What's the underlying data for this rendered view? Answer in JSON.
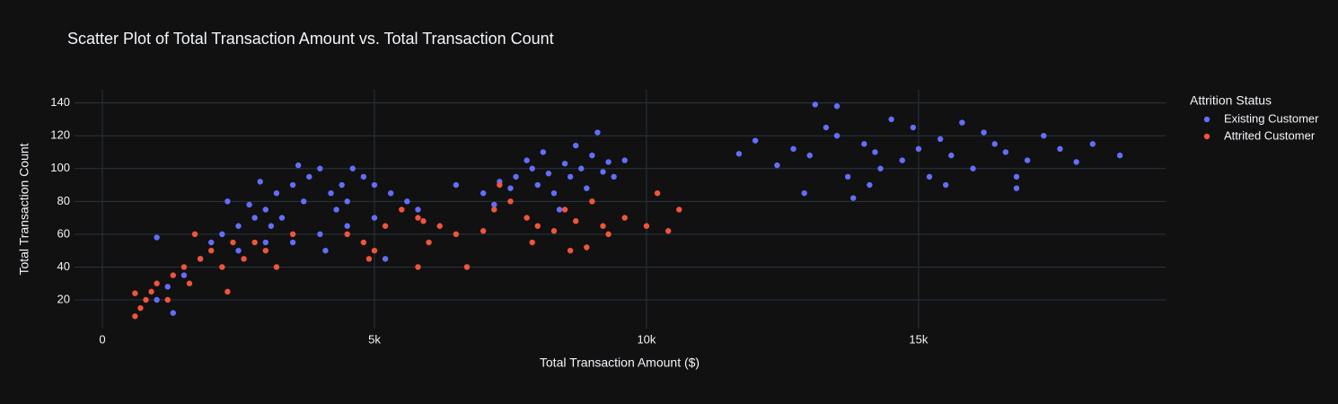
{
  "chart_data": {
    "type": "scatter",
    "title": "Scatter Plot of Total Transaction Amount vs. Total Transaction Count",
    "x_label": "Total Transaction Amount ($)",
    "y_label": "Total Transaction Count",
    "legend_title": "Attrition Status",
    "legend_position": "right",
    "grid": true,
    "xlim": [
      -512,
      19540
    ],
    "ylim": [
      2.5,
      148
    ],
    "xticks": [
      0,
      {
        "value": 5000,
        "label": "5k"
      },
      {
        "value": 10000,
        "label": "10k"
      },
      {
        "value": 15000,
        "label": "15k"
      }
    ],
    "yticks": [
      20,
      40,
      60,
      80,
      100,
      120,
      140
    ],
    "series": [
      {
        "name": "Existing Customer",
        "color": "#636efa",
        "x": [
          1000,
          1200,
          1500,
          1800,
          2000,
          2200,
          2500,
          2800,
          3000,
          3200,
          3500,
          3800,
          4000,
          4200,
          4500,
          4800,
          5000,
          5300,
          5600,
          5800,
          5000,
          4500,
          4000,
          3500,
          3000,
          2500,
          4300,
          3700,
          3300,
          2700,
          1000,
          4600,
          3600,
          5200,
          4100,
          1300,
          2300,
          2900,
          3100,
          4400,
          7000,
          7300,
          7600,
          7900,
          8200,
          8500,
          8800,
          9000,
          9300,
          9600,
          7200,
          7500,
          8000,
          8300,
          8600,
          8900,
          9200,
          7800,
          8100,
          8700,
          9100,
          6500,
          8400,
          9400,
          11700,
          12000,
          12400,
          12700,
          13000,
          13100,
          13300,
          13500,
          13700,
          13800,
          14000,
          14200,
          14300,
          14500,
          14700,
          14900,
          15000,
          15200,
          15400,
          15600,
          15800,
          16000,
          16200,
          16400,
          16600,
          16800,
          17000,
          17300,
          17600,
          17900,
          18200,
          18700,
          13500,
          14100,
          15500,
          12900,
          16800
        ],
        "values": [
          20,
          28,
          35,
          45,
          55,
          60,
          65,
          70,
          75,
          85,
          90,
          95,
          100,
          85,
          80,
          95,
          90,
          85,
          80,
          75,
          70,
          65,
          60,
          55,
          55,
          50,
          75,
          80,
          70,
          78,
          58,
          100,
          102,
          45,
          50,
          12,
          80,
          92,
          65,
          90,
          85,
          92,
          95,
          100,
          97,
          103,
          100,
          108,
          104,
          105,
          78,
          88,
          90,
          85,
          95,
          88,
          98,
          105,
          110,
          114,
          122,
          90,
          75,
          95,
          109,
          117,
          102,
          112,
          108,
          139,
          125,
          120,
          95,
          82,
          115,
          110,
          100,
          130,
          105,
          125,
          112,
          95,
          118,
          108,
          128,
          100,
          122,
          115,
          110,
          95,
          105,
          120,
          112,
          104,
          115,
          108,
          138,
          90,
          90,
          85,
          88
        ]
      },
      {
        "name": "Attrited Customer",
        "color": "#ef553b",
        "x": [
          600,
          700,
          800,
          600,
          900,
          1000,
          1200,
          1300,
          1500,
          1600,
          1800,
          2000,
          2200,
          2400,
          2600,
          2800,
          3000,
          2300,
          1700,
          3200,
          3500,
          4500,
          4800,
          5000,
          5200,
          5500,
          5800,
          6000,
          6200,
          6500,
          6700,
          5800,
          7000,
          7200,
          7500,
          7800,
          8000,
          8300,
          8500,
          8700,
          9000,
          9300,
          9600,
          10000,
          10200,
          10400,
          10600,
          7900,
          8600,
          8900,
          9200,
          7300,
          5900,
          4900
        ],
        "values": [
          10,
          15,
          20,
          24,
          25,
          30,
          20,
          35,
          40,
          30,
          45,
          50,
          40,
          55,
          45,
          55,
          50,
          25,
          60,
          40,
          60,
          60,
          55,
          50,
          65,
          75,
          70,
          55,
          65,
          60,
          40,
          40,
          62,
          75,
          80,
          70,
          65,
          62,
          75,
          68,
          80,
          60,
          70,
          65,
          85,
          62,
          75,
          55,
          50,
          52,
          65,
          90,
          68,
          45
        ]
      }
    ]
  }
}
